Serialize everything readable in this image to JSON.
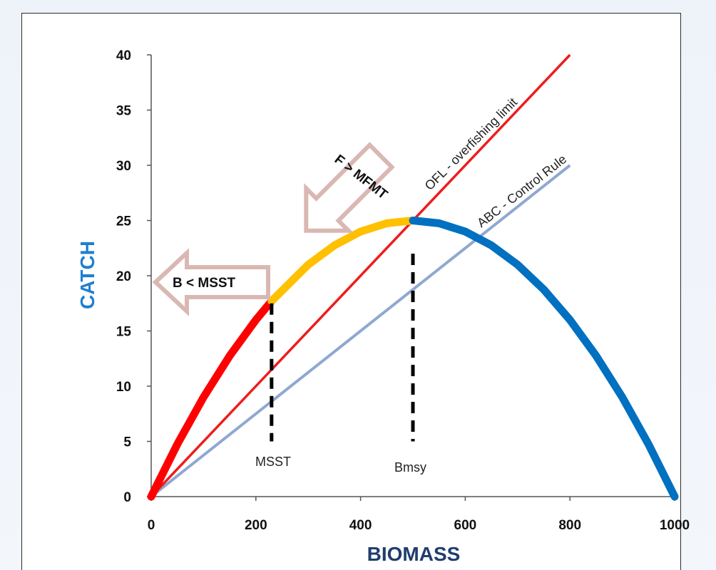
{
  "chart_data": {
    "type": "line",
    "xlabel": "BIOMASS",
    "ylabel": "CATCH",
    "xlim": [
      0,
      1000
    ],
    "ylim": [
      0,
      40
    ],
    "x_ticks": [
      "0",
      "200",
      "400",
      "600",
      "800",
      "1000"
    ],
    "y_ticks": [
      "0",
      "5",
      "10",
      "15",
      "20",
      "25",
      "30",
      "35",
      "40"
    ],
    "x_tick_values": [
      0,
      200,
      400,
      600,
      800,
      1000
    ],
    "y_tick_values": [
      0,
      5,
      10,
      15,
      20,
      25,
      30,
      35,
      40
    ],
    "grid": false,
    "series": [
      {
        "color": "#ff0000",
        "x": [
          0,
          50,
          100,
          150,
          200,
          230
        ],
        "y": [
          0,
          4.75,
          9.0,
          12.75,
          16.0,
          17.7
        ]
      },
      {
        "color": "#ffc000",
        "x": [
          230,
          300,
          350,
          400,
          450,
          500
        ],
        "y": [
          17.7,
          21.0,
          22.75,
          24.0,
          24.75,
          25.0
        ]
      },
      {
        "color": "#0070c0",
        "x": [
          500,
          550,
          600,
          650,
          700,
          750,
          800,
          850,
          900,
          950,
          1000
        ],
        "y": [
          25.0,
          24.75,
          24.0,
          22.75,
          21.0,
          18.75,
          16.0,
          12.75,
          9.0,
          4.75,
          0
        ]
      },
      {
        "name": "OFL - overfishing limit",
        "color": "#ee1c1c",
        "x": [
          0,
          800
        ],
        "y": [
          0,
          40
        ]
      },
      {
        "name": "ABC - Control Rule",
        "color": "#8fa8d0",
        "x": [
          0,
          800
        ],
        "y": [
          0,
          30
        ]
      }
    ],
    "reference_lines": [
      {
        "name": "MSST",
        "x": 230,
        "y_from": 17.5,
        "y_to": 5
      },
      {
        "name": "Bmsy",
        "x": 500,
        "y_from": 22,
        "y_to": 5
      }
    ],
    "annotations": [
      {
        "text": "B < MSST",
        "arrow": "left",
        "arrow_color": "#d9b8b3"
      },
      {
        "text": "F > MFMT",
        "arrow": "up-left",
        "arrow_color": "#d9b8b3"
      }
    ]
  }
}
